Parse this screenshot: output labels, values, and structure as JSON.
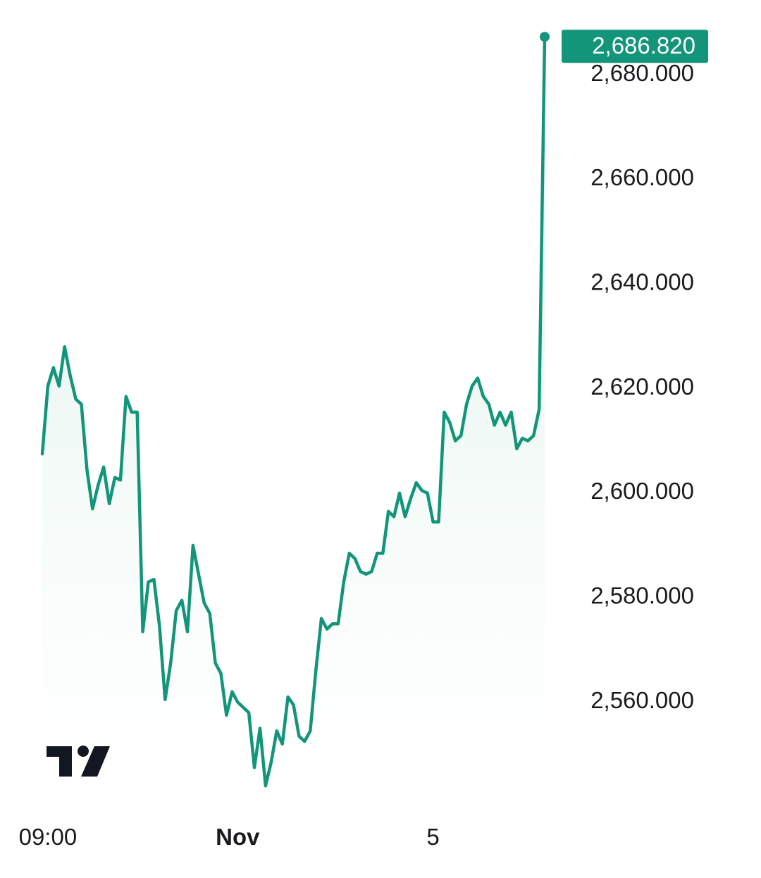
{
  "chart_data": {
    "type": "area",
    "title": "",
    "xlabel": "",
    "ylabel": "",
    "ylim": [
      2541.5,
      2689.0
    ],
    "y_ticks": [
      "2,560.000",
      "2,580.000",
      "2,600.000",
      "2,620.000",
      "2,640.000",
      "2,660.000",
      "2,680.000"
    ],
    "y_tick_values": [
      2560,
      2580,
      2600,
      2620,
      2640,
      2660,
      2680
    ],
    "x_ticks": [
      {
        "label": "09:00",
        "index": 1,
        "bold": false
      },
      {
        "label": "Nov",
        "index": 35,
        "bold": true
      },
      {
        "label": "5",
        "index": 70,
        "bold": false
      }
    ],
    "last_value_label": "2,686.820",
    "series": [
      {
        "values": [
          2607.0,
          2620.0,
          2623.5,
          2620.0,
          2627.5,
          2622.0,
          2617.5,
          2616.5,
          2604.0,
          2596.5,
          2601.0,
          2604.5,
          2597.5,
          2602.5,
          2602.0,
          2618.0,
          2615.0,
          2615.0,
          2573.0,
          2582.5,
          2583.0,
          2574.0,
          2560.0,
          2567.0,
          2577.0,
          2579.0,
          2573.0,
          2589.5,
          2584.0,
          2578.5,
          2576.5,
          2567.0,
          2565.0,
          2557.0,
          2561.5,
          2559.5,
          2558.5,
          2557.5,
          2547.0,
          2554.5,
          2543.5,
          2548.0,
          2554.0,
          2551.5,
          2560.5,
          2559.0,
          2553.0,
          2552.0,
          2554.0,
          2565.5,
          2575.5,
          2573.5,
          2574.5,
          2574.5,
          2582.5,
          2588.0,
          2587.0,
          2584.5,
          2584.0,
          2584.5,
          2588.0,
          2588.0,
          2596.0,
          2595.0,
          2599.5,
          2595.0,
          2598.5,
          2601.5,
          2600.0,
          2599.5,
          2594.0,
          2594.0,
          2615.0,
          2613.0,
          2609.5,
          2610.5,
          2616.5,
          2620.0,
          2621.5,
          2618.0,
          2616.5,
          2612.5,
          2615.0,
          2612.5,
          2615.0,
          2608.0,
          2610.0,
          2609.5,
          2610.5,
          2615.5,
          2686.82
        ]
      }
    ],
    "colors": {
      "line": "#13957a",
      "fill_top": "#c9e9df",
      "fill_bottom": "#ffffff",
      "label_bg": "#13957a",
      "text": "#1b1b1f",
      "logo": "#131722"
    },
    "logo": "tradingview-logo"
  }
}
